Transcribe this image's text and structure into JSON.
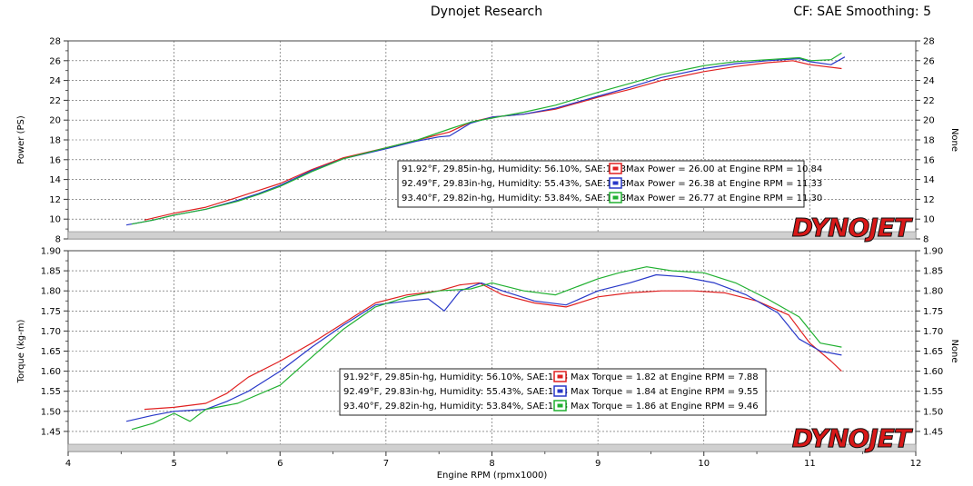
{
  "header": {
    "title": "Dynojet Research",
    "right": "CF: SAE Smoothing: 5"
  },
  "brand_logo": "DYNOJET",
  "xaxis": {
    "label": "Engine RPM (rpmx1000)",
    "range": [
      4,
      12
    ],
    "ticks": [
      "4",
      "5",
      "6",
      "7",
      "8",
      "9",
      "10",
      "11",
      "12"
    ]
  },
  "colors": {
    "run1": "#e02020",
    "run2": "#2838c8",
    "run3": "#20b030",
    "logo_red": "#d81818",
    "logo_black": "#111111"
  },
  "chart_data": [
    {
      "type": "line",
      "title": "",
      "ylabel": "Power (PS)",
      "ylabel_right": "None",
      "ylim": [
        8,
        28
      ],
      "yticks": [
        "8",
        "10",
        "12",
        "14",
        "16",
        "18",
        "20",
        "22",
        "24",
        "26",
        "28"
      ],
      "grid": true,
      "legend": [
        {
          "conditions": "91.92°F, 29.85in-hg, Humidity: 56.10%, SAE:1.03",
          "summary": "Max Power = 26.00 at Engine RPM = 10.84"
        },
        {
          "conditions": "92.49°F, 29.83in-hg, Humidity: 55.43%, SAE:1.03",
          "summary": "Max Power = 26.38 at Engine RPM = 11.33"
        },
        {
          "conditions": "93.40°F, 29.82in-hg, Humidity: 53.84%, SAE:1.03",
          "summary": "Max Power = 26.77 at Engine RPM = 11.30"
        }
      ],
      "series": [
        {
          "x": [
            4.72,
            5.0,
            5.3,
            5.6,
            5.8,
            6.0,
            6.3,
            6.6,
            7.0,
            7.3,
            7.6,
            7.8,
            8.0,
            8.3,
            8.6,
            9.0,
            9.3,
            9.6,
            10.0,
            10.3,
            10.6,
            10.84,
            11.0,
            11.3
          ],
          "y": [
            9.9,
            10.6,
            11.2,
            12.2,
            12.9,
            13.6,
            15.0,
            16.2,
            17.2,
            18.0,
            18.8,
            19.8,
            20.3,
            20.6,
            21.1,
            22.3,
            23.1,
            24.0,
            24.9,
            25.4,
            25.8,
            26.0,
            25.6,
            25.2
          ]
        },
        {
          "x": [
            4.55,
            4.8,
            5.0,
            5.3,
            5.6,
            5.8,
            6.0,
            6.3,
            6.6,
            7.0,
            7.3,
            7.5,
            7.6,
            7.8,
            8.0,
            8.3,
            8.6,
            9.0,
            9.3,
            9.6,
            10.0,
            10.3,
            10.6,
            10.9,
            11.0,
            11.2,
            11.33
          ],
          "y": [
            9.4,
            9.9,
            10.4,
            11.0,
            11.9,
            12.6,
            13.4,
            14.9,
            16.1,
            17.1,
            17.9,
            18.3,
            18.4,
            19.7,
            20.3,
            20.6,
            21.2,
            22.4,
            23.3,
            24.3,
            25.2,
            25.7,
            26.0,
            26.2,
            25.9,
            25.6,
            26.38
          ]
        },
        {
          "x": [
            4.6,
            4.8,
            5.0,
            5.3,
            5.6,
            5.8,
            6.0,
            6.3,
            6.6,
            7.0,
            7.3,
            7.6,
            7.8,
            8.0,
            8.3,
            8.6,
            9.0,
            9.3,
            9.6,
            10.0,
            10.3,
            10.6,
            10.9,
            11.0,
            11.2,
            11.3
          ],
          "y": [
            9.5,
            9.9,
            10.4,
            11.0,
            11.8,
            12.5,
            13.3,
            14.8,
            16.1,
            17.2,
            18.0,
            19.1,
            19.8,
            20.2,
            20.8,
            21.5,
            22.8,
            23.7,
            24.6,
            25.5,
            25.9,
            26.1,
            26.3,
            26.0,
            26.1,
            26.77
          ]
        }
      ]
    },
    {
      "type": "line",
      "title": "",
      "ylabel": "Torque (kg-m)",
      "ylabel_right": "None",
      "ylim": [
        1.4,
        1.9
      ],
      "yticks": [
        "1.45",
        "1.50",
        "1.55",
        "1.60",
        "1.65",
        "1.70",
        "1.75",
        "1.80",
        "1.85",
        "1.90"
      ],
      "grid": true,
      "legend": [
        {
          "conditions": "91.92°F, 29.85in-hg, Humidity: 56.10%, SAE:1.03",
          "summary": "Max Torque = 1.82 at Engine RPM = 7.88"
        },
        {
          "conditions": "92.49°F, 29.83in-hg, Humidity: 55.43%, SAE:1.03",
          "summary": "Max Torque = 1.84 at Engine RPM = 9.55"
        },
        {
          "conditions": "93.40°F, 29.82in-hg, Humidity: 53.84%, SAE:1.03",
          "summary": "Max Torque = 1.86 at Engine RPM = 9.46"
        }
      ],
      "series": [
        {
          "x": [
            4.72,
            5.0,
            5.3,
            5.5,
            5.7,
            6.0,
            6.3,
            6.6,
            6.9,
            7.2,
            7.5,
            7.7,
            7.88,
            8.1,
            8.4,
            8.7,
            9.0,
            9.3,
            9.6,
            9.9,
            10.2,
            10.5,
            10.8,
            11.0,
            11.2,
            11.3
          ],
          "y": [
            1.505,
            1.51,
            1.52,
            1.545,
            1.585,
            1.625,
            1.67,
            1.72,
            1.77,
            1.79,
            1.8,
            1.815,
            1.82,
            1.79,
            1.77,
            1.76,
            1.785,
            1.795,
            1.8,
            1.8,
            1.795,
            1.775,
            1.74,
            1.67,
            1.625,
            1.6
          ]
        },
        {
          "x": [
            4.55,
            4.8,
            5.0,
            5.3,
            5.5,
            5.7,
            6.0,
            6.3,
            6.6,
            6.9,
            7.2,
            7.4,
            7.55,
            7.7,
            7.9,
            8.1,
            8.4,
            8.7,
            9.0,
            9.3,
            9.55,
            9.8,
            10.1,
            10.4,
            10.7,
            10.9,
            11.1,
            11.3
          ],
          "y": [
            1.475,
            1.49,
            1.5,
            1.505,
            1.525,
            1.55,
            1.6,
            1.66,
            1.715,
            1.765,
            1.775,
            1.78,
            1.75,
            1.8,
            1.82,
            1.8,
            1.775,
            1.765,
            1.8,
            1.82,
            1.84,
            1.835,
            1.82,
            1.79,
            1.745,
            1.68,
            1.65,
            1.64
          ]
        },
        {
          "x": [
            4.6,
            4.8,
            5.0,
            5.15,
            5.3,
            5.6,
            6.0,
            6.3,
            6.6,
            6.9,
            7.2,
            7.5,
            7.8,
            8.0,
            8.3,
            8.6,
            9.0,
            9.2,
            9.46,
            9.7,
            10.0,
            10.3,
            10.6,
            10.9,
            11.1,
            11.3
          ],
          "y": [
            1.455,
            1.47,
            1.495,
            1.475,
            1.505,
            1.52,
            1.565,
            1.635,
            1.705,
            1.76,
            1.785,
            1.8,
            1.805,
            1.82,
            1.8,
            1.79,
            1.83,
            1.845,
            1.86,
            1.85,
            1.845,
            1.82,
            1.78,
            1.735,
            1.67,
            1.66
          ]
        }
      ]
    }
  ]
}
